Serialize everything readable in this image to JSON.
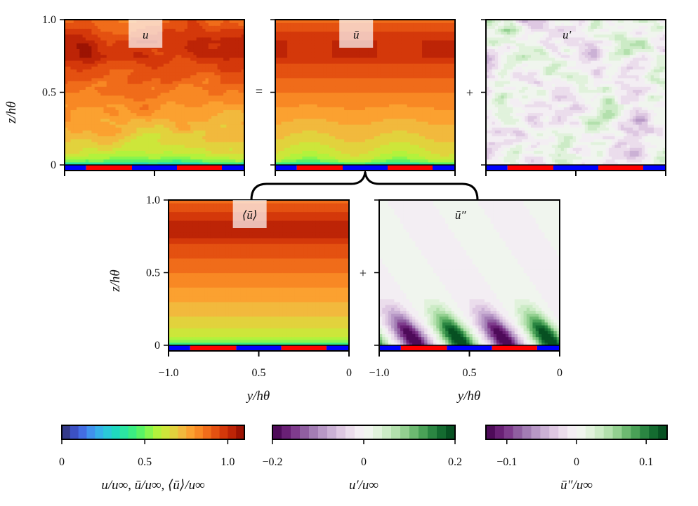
{
  "chart_data": {
    "type": "heatmap",
    "panels": [
      {
        "id": "u",
        "title": "u",
        "ylabel": "z/hθ",
        "yticks": [
          "0",
          "0.5",
          "1.0"
        ],
        "xticks": [],
        "field": "instantaneous",
        "colormap": "seq"
      },
      {
        "id": "ubar",
        "title": "ū",
        "operator_before": "=",
        "field": "time-mean",
        "colormap": "seq"
      },
      {
        "id": "uprime",
        "title": "u′",
        "operator_before": "+",
        "field": "fluctuation",
        "colormap": "div1"
      },
      {
        "id": "uavg",
        "title": "⟨ū⟩",
        "ylabel": "z/hθ",
        "yticks": [
          "0",
          "0.5",
          "1.0"
        ],
        "xticks": [
          "−1.0",
          "0.5",
          "0"
        ],
        "xlabel": "y/hθ",
        "field": "spanwise-mean",
        "colormap": "seq"
      },
      {
        "id": "udisp",
        "title": "ū″",
        "operator_before": "+",
        "xticks": [
          "−1.0",
          "0.5",
          "0"
        ],
        "xlabel": "y/hθ",
        "field": "dispersive",
        "colormap": "div2"
      }
    ],
    "mean_profile": {
      "z": [
        0,
        0.02,
        0.05,
        0.1,
        0.2,
        0.3,
        0.4,
        0.5,
        0.6,
        0.7,
        0.75,
        0.85,
        0.9,
        0.95,
        1.0
      ],
      "u": [
        0.45,
        0.55,
        0.6,
        0.64,
        0.7,
        0.75,
        0.8,
        0.85,
        0.9,
        0.95,
        1.0,
        1.0,
        0.96,
        0.92,
        0.88
      ]
    },
    "surface_strips": {
      "pattern": [
        "blue",
        "red",
        "blue",
        "red",
        "blue"
      ],
      "y_fraction_edges": [
        0,
        0.12,
        0.375,
        0.625,
        0.875,
        1
      ],
      "colors": {
        "blue": "#0000ff",
        "red": "#ff0000"
      }
    },
    "colorbars": [
      {
        "id": "seq",
        "range": [
          0,
          1.1
        ],
        "levels": 22,
        "ticks": [
          "0",
          "0.5",
          "1.0"
        ],
        "tick_values": [
          0,
          0.5,
          1.0
        ],
        "label": "u/u∞, ū/u∞, ⟨ū⟩/u∞",
        "colors": [
          "#30306a",
          "#3b4bbd",
          "#4470e6",
          "#3ea0f2",
          "#2ec4e0",
          "#1fd8c0",
          "#2ee89a",
          "#45f070",
          "#80f550",
          "#b8f23a",
          "#d8e03a",
          "#f0c040",
          "#fba030",
          "#f78020",
          "#ea5a14",
          "#d63a0a",
          "#b82005",
          "#8a0a02"
        ]
      },
      {
        "id": "div1",
        "range": [
          -0.2,
          0.2
        ],
        "levels": 20,
        "ticks": [
          "−0.2",
          "0",
          "0.2"
        ],
        "tick_values": [
          -0.2,
          0,
          0.2
        ],
        "label": "u′/u∞",
        "colors": [
          "#40004b",
          "#762a83",
          "#9970ab",
          "#c2a5cf",
          "#e7d4e8",
          "#f7f7f7",
          "#d9f0d3",
          "#a6dba0",
          "#5aae61",
          "#1b7837",
          "#00441b"
        ]
      },
      {
        "id": "div2",
        "range": [
          -0.13,
          0.13
        ],
        "levels": 20,
        "ticks": [
          "−0.1",
          "0",
          "0.1"
        ],
        "tick_values": [
          -0.1,
          0,
          0.1
        ],
        "label": "ū″/u∞",
        "colors": [
          "#40004b",
          "#762a83",
          "#9970ab",
          "#c2a5cf",
          "#e7d4e8",
          "#f7f7f7",
          "#d9f0d3",
          "#a6dba0",
          "#5aae61",
          "#1b7837",
          "#00441b"
        ]
      }
    ]
  }
}
